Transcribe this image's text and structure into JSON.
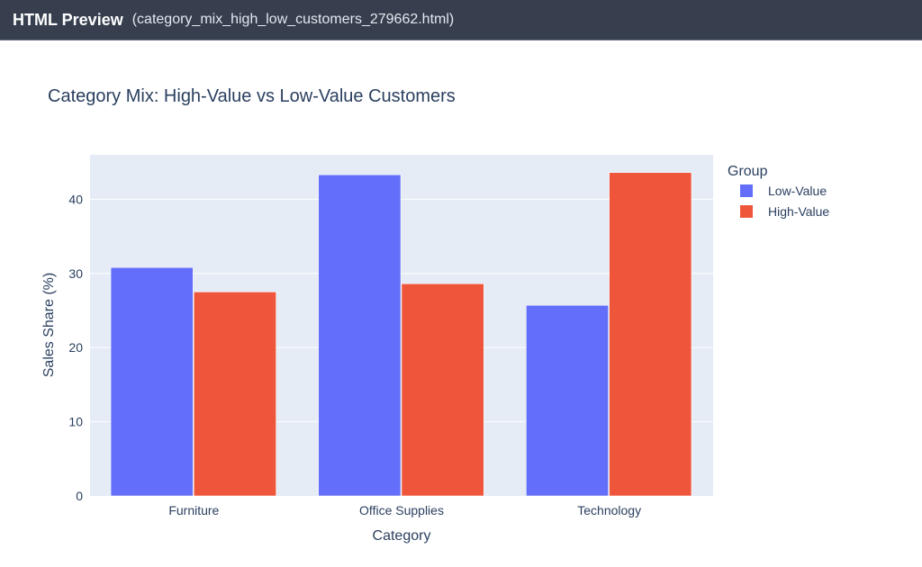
{
  "window": {
    "title": "HTML Preview",
    "filename": "(category_mix_high_low_customers_279662.html)"
  },
  "chart_data": {
    "type": "bar",
    "title": "Category Mix: High-Value vs Low-Value Customers",
    "xlabel": "Category",
    "ylabel": "Sales Share (%)",
    "categories": [
      "Furniture",
      "Office Supplies",
      "Technology"
    ],
    "series": [
      {
        "name": "Low-Value",
        "color": "#636efa",
        "values": [
          30.8,
          43.3,
          25.7
        ]
      },
      {
        "name": "High-Value",
        "color": "#ef553b",
        "values": [
          27.5,
          28.6,
          43.6
        ]
      }
    ],
    "ylim": [
      0,
      46
    ],
    "yticks": [
      0,
      10,
      20,
      30,
      40
    ],
    "grid": true,
    "legend": {
      "title": "Group",
      "placement": "top-right"
    }
  }
}
